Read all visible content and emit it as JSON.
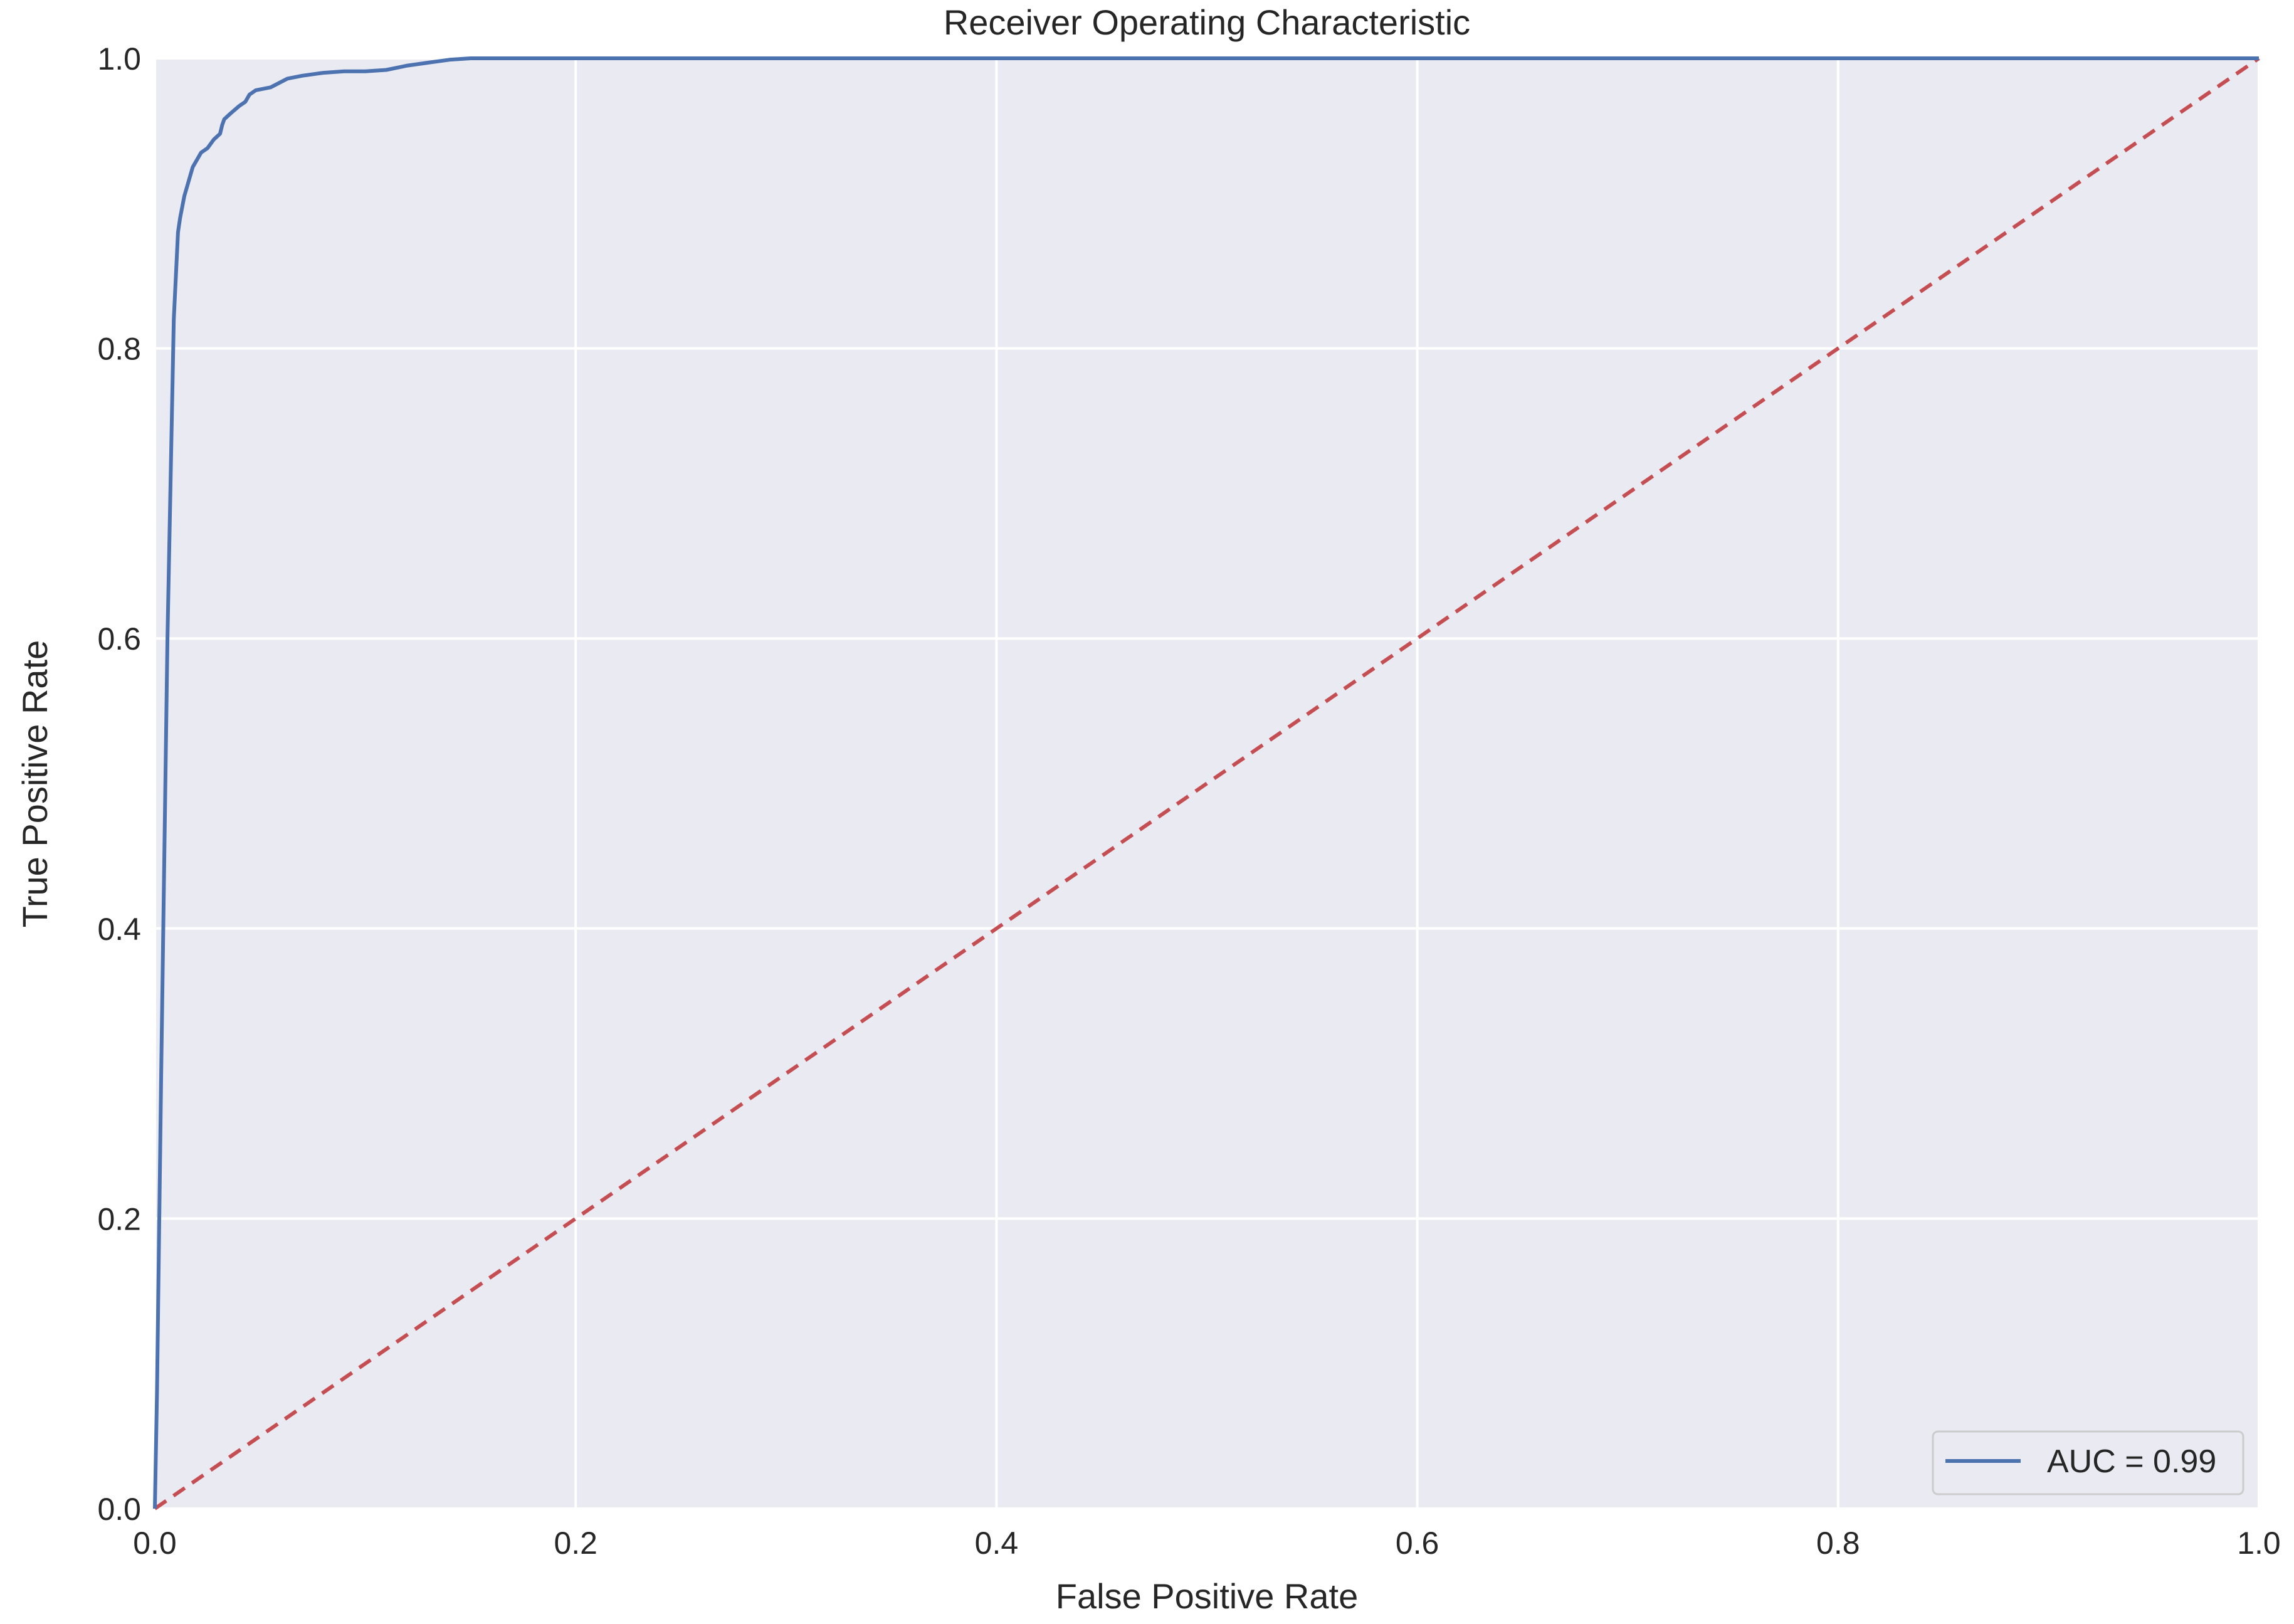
{
  "chart_data": {
    "type": "line",
    "title": "Receiver Operating Characteristic",
    "xlabel": "False Positive Rate",
    "ylabel": "True Positive Rate",
    "xlim": [
      0,
      1
    ],
    "ylim": [
      0,
      1
    ],
    "xticks": [
      "0.0",
      "0.2",
      "0.4",
      "0.6",
      "0.8",
      "1.0"
    ],
    "yticks": [
      "0.0",
      "0.2",
      "0.4",
      "0.6",
      "0.8",
      "1.0"
    ],
    "grid": true,
    "legend_position": "lower-right",
    "background_color": "#eaeaf2",
    "series": [
      {
        "name": "AUC = 0.99",
        "color": "#4c72b0",
        "style": "solid",
        "x": [
          0,
          0.001,
          0.003,
          0.006,
          0.009,
          0.011,
          0.012,
          0.014,
          0.016,
          0.018,
          0.02,
          0.022,
          0.025,
          0.028,
          0.031,
          0.032,
          0.033,
          0.036,
          0.04,
          0.043,
          0.045,
          0.048,
          0.055,
          0.063,
          0.07,
          0.08,
          0.09,
          0.1,
          0.11,
          0.12,
          0.13,
          0.14,
          0.15,
          0.2,
          0.3,
          0.4,
          0.6,
          0.8,
          1.0
        ],
        "y": [
          0,
          0.08,
          0.3,
          0.6,
          0.82,
          0.88,
          0.89,
          0.905,
          0.915,
          0.925,
          0.93,
          0.935,
          0.938,
          0.944,
          0.948,
          0.954,
          0.958,
          0.962,
          0.967,
          0.97,
          0.975,
          0.978,
          0.98,
          0.986,
          0.988,
          0.99,
          0.991,
          0.991,
          0.992,
          0.995,
          0.997,
          0.999,
          1.0,
          1.0,
          1.0,
          1.0,
          1.0,
          1.0,
          1.0
        ]
      },
      {
        "name": "",
        "color": "#c44e52",
        "style": "dashed",
        "x": [
          0,
          1
        ],
        "y": [
          0,
          1
        ]
      }
    ]
  }
}
